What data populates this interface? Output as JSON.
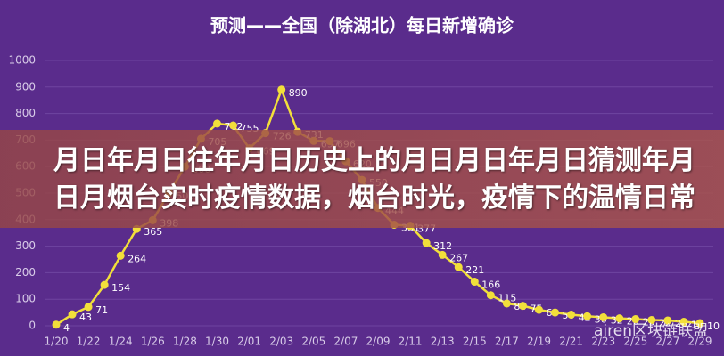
{
  "chart_data": {
    "type": "line",
    "title": "预测——全国（除湖北）每日新增确诊",
    "categories": [
      "1/20",
      null,
      "1/22",
      null,
      "1/24",
      null,
      "1/26",
      null,
      "1/28",
      null,
      "1/30",
      null,
      "2/01",
      null,
      "2/03",
      null,
      "2/05",
      null,
      "2/07",
      null,
      "2/09",
      null,
      "2/11",
      null,
      "2/13",
      null,
      "2/15",
      null,
      "2/17",
      null,
      "2/19",
      null,
      "2/21",
      null,
      "2/23",
      null,
      "2/25",
      null,
      "2/27",
      null,
      "2/29"
    ],
    "series": [
      {
        "name": "每日新增确诊",
        "color": "#f2df3a",
        "values": [
          4,
          43,
          71,
          154,
          264,
          365,
          398,
          500,
          600,
          705,
          762,
          755,
          669,
          726,
          890,
          731,
          697,
          696,
          620,
          550,
          444,
          381,
          377,
          312,
          267,
          221,
          166,
          115,
          84,
          75,
          60,
          50,
          42,
          36,
          32,
          28,
          25,
          22,
          20,
          15,
          10
        ]
      }
    ],
    "ylim": [
      0,
      1000
    ],
    "yticks": [
      0,
      100,
      200,
      300,
      400,
      500,
      600,
      700,
      800,
      900,
      1000
    ],
    "grid": true,
    "data_labels": true
  },
  "banner": "月日年月日往年月日历史上的月日月日年月日猜测年月日月烟台实时疫情数据，烟台时光，疫情下的温情日常",
  "watermark": "airen区块链联盟"
}
